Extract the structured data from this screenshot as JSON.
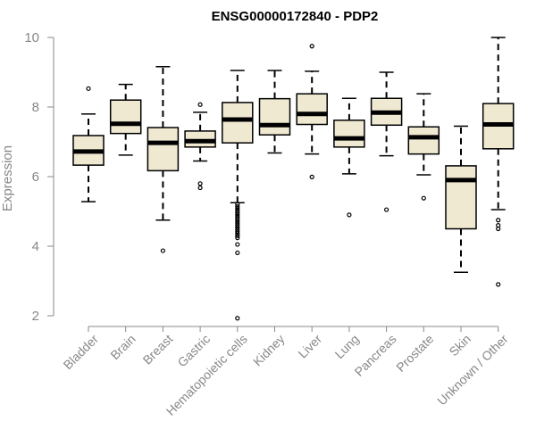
{
  "chart_data": {
    "type": "boxplot",
    "title": "ENSG00000172840 - PDP2",
    "xlabel": "",
    "ylabel": "Expression",
    "ylim": [
      1.8,
      10.1
    ],
    "yticks": [
      2,
      4,
      6,
      8,
      10
    ],
    "box_fill": "#f0e9d2",
    "categories": [
      "Bladder",
      "Brain",
      "Breast",
      "Gastric",
      "Hematopoietic cells",
      "Kidney",
      "Liver",
      "Lung",
      "Pancreas",
      "Prostate",
      "Skin",
      "Unknown / Other"
    ],
    "boxes": [
      {
        "name": "Bladder",
        "whisker_low": 5.28,
        "q1": 6.33,
        "median": 6.72,
        "q3": 7.18,
        "whisker_high": 7.8,
        "outliers": [
          8.53
        ]
      },
      {
        "name": "Brain",
        "whisker_low": 6.62,
        "q1": 7.24,
        "median": 7.52,
        "q3": 8.2,
        "whisker_high": 8.65,
        "outliers": []
      },
      {
        "name": "Breast",
        "whisker_low": 4.75,
        "q1": 6.17,
        "median": 6.97,
        "q3": 7.41,
        "whisker_high": 9.16,
        "outliers": [
          3.87
        ]
      },
      {
        "name": "Gastric",
        "whisker_low": 6.45,
        "q1": 6.85,
        "median": 7.02,
        "q3": 7.31,
        "whisker_high": 7.85,
        "outliers": [
          8.07,
          5.8,
          5.68
        ]
      },
      {
        "name": "Hematopoietic cells",
        "whisker_low": 5.25,
        "q1": 6.97,
        "median": 7.64,
        "q3": 8.13,
        "whisker_high": 9.05,
        "outliers": [
          5.2,
          5.14,
          5.08,
          5.02,
          4.96,
          4.9,
          4.84,
          4.78,
          4.72,
          4.66,
          4.6,
          4.54,
          4.48,
          4.42,
          4.36,
          4.3,
          4.24,
          4.05,
          3.81,
          1.93
        ]
      },
      {
        "name": "Kidney",
        "whisker_low": 6.68,
        "q1": 7.2,
        "median": 7.48,
        "q3": 8.24,
        "whisker_high": 9.05,
        "outliers": []
      },
      {
        "name": "Liver",
        "whisker_low": 6.65,
        "q1": 7.5,
        "median": 7.8,
        "q3": 8.38,
        "whisker_high": 9.03,
        "outliers": [
          9.75,
          5.99
        ]
      },
      {
        "name": "Lung",
        "whisker_low": 6.08,
        "q1": 6.85,
        "median": 7.1,
        "q3": 7.62,
        "whisker_high": 8.25,
        "outliers": [
          4.9
        ]
      },
      {
        "name": "Pancreas",
        "whisker_low": 6.6,
        "q1": 7.48,
        "median": 7.84,
        "q3": 8.25,
        "whisker_high": 9.0,
        "outliers": [
          5.05
        ]
      },
      {
        "name": "Prostate",
        "whisker_low": 6.05,
        "q1": 6.65,
        "median": 7.13,
        "q3": 7.43,
        "whisker_high": 8.38,
        "outliers": [
          5.38
        ]
      },
      {
        "name": "Skin",
        "whisker_low": 3.25,
        "q1": 4.5,
        "median": 5.9,
        "q3": 6.31,
        "whisker_high": 7.45,
        "outliers": []
      },
      {
        "name": "Unknown / Other",
        "whisker_low": 5.05,
        "q1": 6.8,
        "median": 7.5,
        "q3": 8.1,
        "whisker_high": 10.0,
        "outliers": [
          4.75,
          4.6,
          4.5,
          2.9
        ]
      }
    ]
  }
}
